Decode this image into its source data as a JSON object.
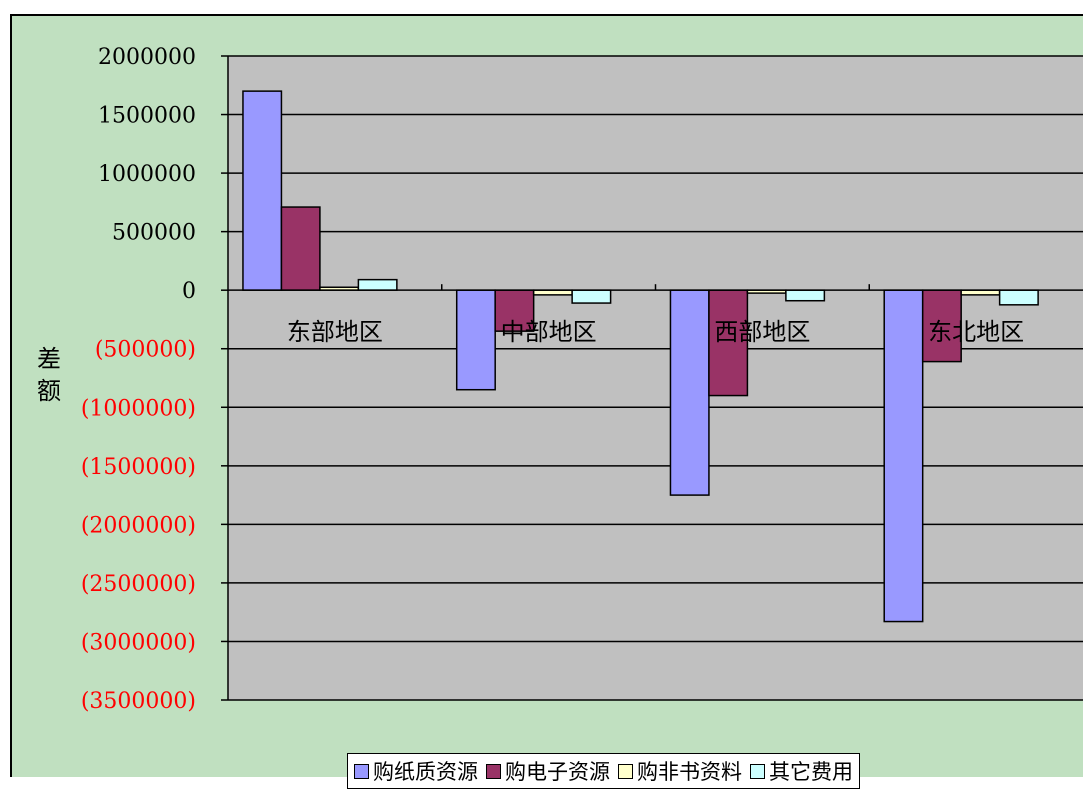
{
  "chart_data": {
    "type": "bar",
    "categories": [
      "东部地区",
      "中部地区",
      "西部地区",
      "东北地区"
    ],
    "ylabel": "差额",
    "ylim": [
      -3500000,
      2000000
    ],
    "yticks": [
      2000000,
      1500000,
      1000000,
      500000,
      0,
      -500000,
      -1000000,
      -1500000,
      -2000000,
      -2500000,
      -3000000,
      -3500000
    ],
    "ytick_labels": [
      "2000000",
      "1500000",
      "1000000",
      "500000",
      "0",
      "(500000)",
      "(1000000)",
      "(1500000)",
      "(2000000)",
      "(2500000)",
      "(3000000)",
      "(3500000)"
    ],
    "grid": true,
    "legend_position": "bottom",
    "series": [
      {
        "name": "购纸质资源",
        "color": "#9999ff",
        "values": [
          1700000,
          -850000,
          -1750000,
          -2830000
        ]
      },
      {
        "name": "购电子资源",
        "color": "#993366",
        "values": [
          710000,
          -350000,
          -900000,
          -610000
        ]
      },
      {
        "name": "购非书资料",
        "color": "#ffffcc",
        "values": [
          25000,
          -40000,
          -25000,
          -40000
        ]
      },
      {
        "name": "其它费用",
        "color": "#ccffff",
        "values": [
          90000,
          -110000,
          -90000,
          -125000
        ]
      }
    ],
    "colors": {
      "plot_background": "#c0c0c0",
      "chart_background": "#c0e0c0",
      "negative_tick_label": "#ff0000",
      "positive_tick_label": "#000000"
    }
  }
}
